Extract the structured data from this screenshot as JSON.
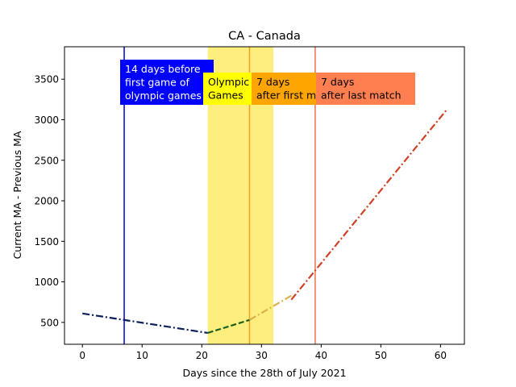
{
  "chart_data": {
    "type": "line",
    "title": "CA - Canada",
    "xlabel": "Days since the 28th of July 2021",
    "ylabel": "Current MA - Previous MA",
    "xlim": [
      -3,
      64
    ],
    "ylim": [
      230,
      3900
    ],
    "x_ticks": [
      0,
      10,
      20,
      30,
      40,
      50,
      60
    ],
    "y_ticks": [
      500,
      1000,
      1500,
      2000,
      2500,
      3000,
      3500
    ],
    "grid": false,
    "shaded_region": {
      "x": [
        21,
        32
      ],
      "color": "#fdee7e"
    },
    "vlines": [
      {
        "x": 7,
        "color": "#0000cc"
      },
      {
        "x": 28,
        "color": "#f0a020"
      },
      {
        "x": 39,
        "color": "#f07050"
      }
    ],
    "annotations": [
      {
        "text": [
          "14 days before",
          "first game of",
          "olympic games"
        ],
        "bg": "#0000ff",
        "fg": "#ffffff"
      },
      {
        "text": [
          "Olympic",
          "Games"
        ],
        "bg": "#ffff00",
        "fg": "#000000"
      },
      {
        "text": [
          "7 days",
          "after first match"
        ],
        "bg": "#ffa500",
        "fg": "#000000"
      },
      {
        "text": [
          "7 days",
          "after last match"
        ],
        "bg": "#ff7f50",
        "fg": "#000000"
      }
    ],
    "series": [
      {
        "color": "#0a1f5c",
        "style": "dashdot",
        "x": [
          0,
          21
        ],
        "y": [
          610,
          370
        ]
      },
      {
        "color": "#1a6020",
        "style": "dashed",
        "x": [
          21,
          28
        ],
        "y": [
          370,
          530
        ]
      },
      {
        "color": "#d9b050",
        "style": "dashdot",
        "x": [
          28,
          35
        ],
        "y": [
          530,
          830
        ]
      },
      {
        "color": "#d04025",
        "style": "dashdot",
        "x": [
          35,
          61
        ],
        "y": [
          780,
          3120
        ]
      }
    ]
  }
}
